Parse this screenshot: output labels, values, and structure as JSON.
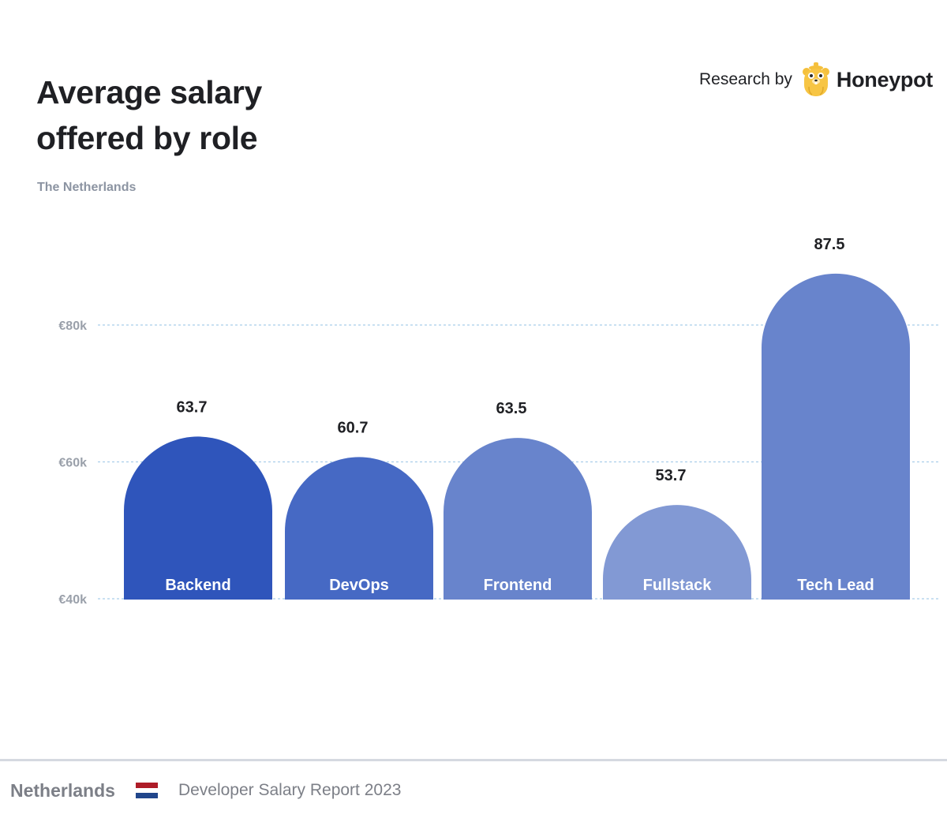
{
  "header": {
    "title_line1": "Average salary",
    "title_line2": "offered by role",
    "subtitle": "The Netherlands"
  },
  "brand": {
    "research_by": "Research by",
    "name": "Honeypot",
    "logo_icon": "honeypot-bear-icon"
  },
  "footer": {
    "country": "Netherlands",
    "flag_icon": "netherlands-flag-icon",
    "flag_colors": [
      "#ae1c28",
      "#ffffff",
      "#21468b"
    ],
    "report": "Developer Salary Report 2023"
  },
  "chart_data": {
    "type": "bar",
    "title": "Average salary offered by role",
    "subtitle": "The Netherlands",
    "xlabel": "",
    "ylabel": "",
    "categories": [
      "Backend",
      "DevOps",
      "Frontend",
      "Fullstack",
      "Tech Lead"
    ],
    "values": [
      63.7,
      60.7,
      63.5,
      53.7,
      87.5
    ],
    "value_labels": [
      "63.7",
      "60.7",
      "63.5",
      "53.7",
      "87.5"
    ],
    "colors": [
      "#2f55bb",
      "#4669c4",
      "#6884cc",
      "#8299d4",
      "#6884cc"
    ],
    "yticks": [
      40,
      60,
      80
    ],
    "ytick_labels": [
      "€40k",
      "€60k",
      "€80k"
    ],
    "ylim": [
      40,
      95
    ],
    "unit": "thousand EUR",
    "grid": true,
    "legend": "none"
  }
}
